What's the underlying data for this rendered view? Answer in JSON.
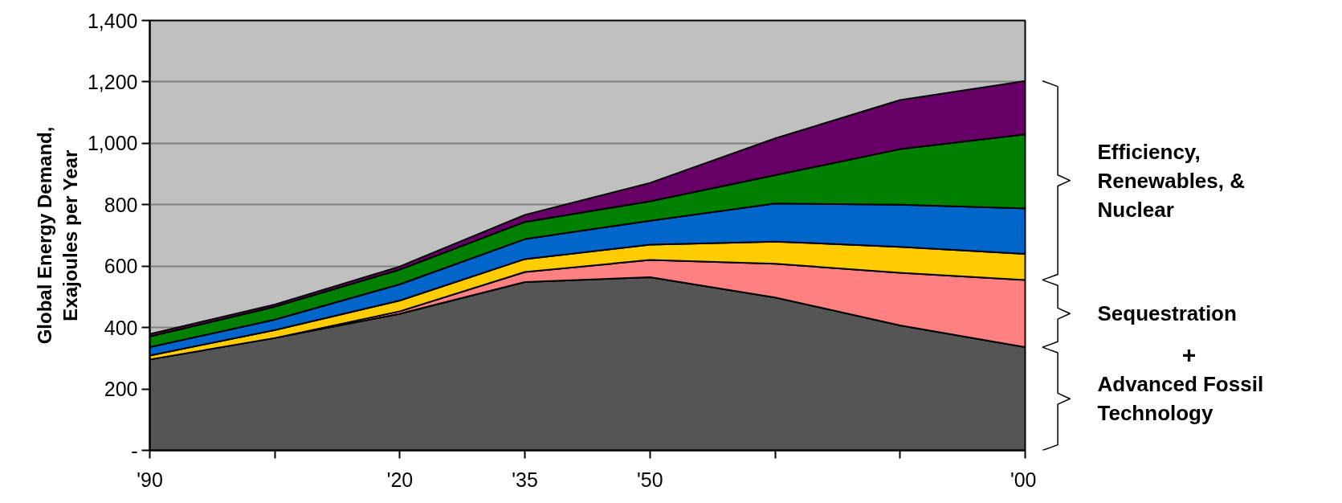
{
  "chart_data": {
    "type": "area",
    "stacked": true,
    "ylabel": "Global Energy Demand,\nExajoules per Year",
    "categories": [
      "'90",
      null,
      "'20",
      "'35",
      "'50",
      null,
      null,
      "'00"
    ],
    "series": [
      {
        "color": "#555555",
        "values": [
          296,
          366,
          445,
          548,
          564,
          498,
          407,
          336
        ]
      },
      {
        "color": "#ff8080",
        "values": [
          0,
          0,
          8,
          33,
          56,
          110,
          171,
          219
        ]
      },
      {
        "color": "#ffcc00",
        "values": [
          13,
          26,
          35,
          42,
          50,
          72,
          85,
          85
        ]
      },
      {
        "color": "#0066cc",
        "values": [
          27,
          34,
          53,
          65,
          78,
          124,
          137,
          148
        ]
      },
      {
        "color": "#008000",
        "values": [
          35,
          42,
          48,
          56,
          63,
          92,
          181,
          241
        ]
      },
      {
        "color": "#660066",
        "values": [
          8,
          7,
          10,
          23,
          60,
          120,
          160,
          174
        ]
      }
    ],
    "ylim": [
      0,
      1400
    ],
    "yticks": [
      {
        "value": 0,
        "label": "-"
      },
      {
        "value": 200,
        "label": "200"
      },
      {
        "value": 400,
        "label": "400"
      },
      {
        "value": 600,
        "label": "600"
      },
      {
        "value": 800,
        "label": "800"
      },
      {
        "value": 1000,
        "label": "1,000"
      },
      {
        "value": 1200,
        "label": "1,200"
      },
      {
        "value": 1400,
        "label": "1,400"
      }
    ],
    "grid": "y",
    "annotations": [
      "Efficiency,\nRenewables, &\nNuclear",
      "Sequestration",
      "+",
      "Advanced Fossil\nTechnology"
    ]
  }
}
